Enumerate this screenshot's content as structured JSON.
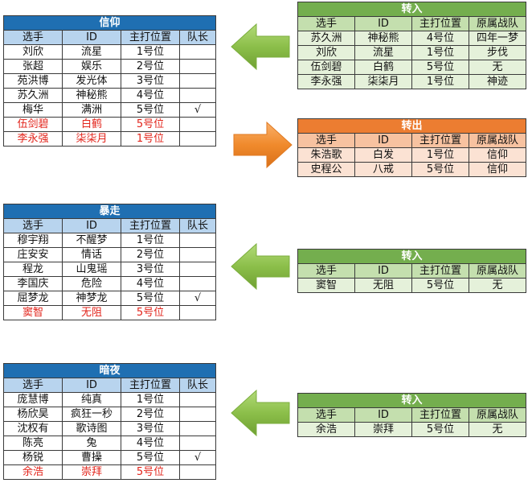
{
  "colors": {
    "team_title": "#1f6fb2",
    "team_header": "#b8d4ee",
    "transfer_in": "#74ae4e",
    "transfer_out": "#ec7d31",
    "new_member_text": "#e2231a",
    "arrow_green": "#8cbf4a",
    "arrow_orange": "#f08a2c"
  },
  "teams": [
    {
      "title": "信仰",
      "headers": [
        "选手",
        "ID",
        "主打位置",
        "队长"
      ],
      "rows": [
        {
          "name": "刘欣",
          "id": "流星",
          "pos": "1号位",
          "cap": "",
          "new": false
        },
        {
          "name": "张超",
          "id": "娱乐",
          "pos": "2号位",
          "cap": "",
          "new": false
        },
        {
          "name": "苑洪博",
          "id": "发光体",
          "pos": "3号位",
          "cap": "",
          "new": false
        },
        {
          "name": "苏久洲",
          "id": "神秘熊",
          "pos": "4号位",
          "cap": "",
          "new": false
        },
        {
          "name": "梅华",
          "id": "满洲",
          "pos": "5号位",
          "cap": "√",
          "new": false
        },
        {
          "name": "伍剑碧",
          "id": "白鹤",
          "pos": "5号位",
          "cap": "",
          "new": true
        },
        {
          "name": "李永强",
          "id": "柒柒月",
          "pos": "1号位",
          "cap": "",
          "new": true
        }
      ]
    },
    {
      "title": "暴走",
      "headers": [
        "选手",
        "ID",
        "主打位置",
        "队长"
      ],
      "rows": [
        {
          "name": "穆宇翔",
          "id": "不醒梦",
          "pos": "1号位",
          "cap": "",
          "new": false
        },
        {
          "name": "庄安安",
          "id": "情话",
          "pos": "2号位",
          "cap": "",
          "new": false
        },
        {
          "name": "程龙",
          "id": "山鬼瑶",
          "pos": "3号位",
          "cap": "",
          "new": false
        },
        {
          "name": "李国庆",
          "id": "危险",
          "pos": "4号位",
          "cap": "",
          "new": false
        },
        {
          "name": "屈梦龙",
          "id": "神梦龙",
          "pos": "5号位",
          "cap": "√",
          "new": false
        },
        {
          "name": "窦智",
          "id": "无阻",
          "pos": "5号位",
          "cap": "",
          "new": true
        }
      ]
    },
    {
      "title": "暗夜",
      "headers": [
        "选手",
        "ID",
        "主打位置",
        "队长"
      ],
      "rows": [
        {
          "name": "庞慧博",
          "id": "纯真",
          "pos": "1号位",
          "cap": "",
          "new": false
        },
        {
          "name": "杨欣昊",
          "id": "疯狂一秒",
          "pos": "2号位",
          "cap": "",
          "new": false
        },
        {
          "name": "沈权有",
          "id": "歌诗图",
          "pos": "3号位",
          "cap": "",
          "new": false
        },
        {
          "name": "陈亮",
          "id": "兔",
          "pos": "4号位",
          "cap": "",
          "new": false
        },
        {
          "name": "杨锐",
          "id": "曹操",
          "pos": "5号位",
          "cap": "√",
          "new": false
        },
        {
          "name": "余浩",
          "id": "崇拜",
          "pos": "5号位",
          "cap": "",
          "new": true
        }
      ]
    }
  ],
  "transfers": [
    {
      "title": "转入",
      "kind": "in",
      "headers": [
        "选手",
        "ID",
        "主打位置",
        "原属战队"
      ],
      "rows": [
        {
          "name": "苏久洲",
          "id": "神秘熊",
          "pos": "4号位",
          "from": "四年一梦"
        },
        {
          "name": "刘欣",
          "id": "流星",
          "pos": "1号位",
          "from": "步伐"
        },
        {
          "name": "伍剑碧",
          "id": "白鹤",
          "pos": "5号位",
          "from": "无"
        },
        {
          "name": "李永强",
          "id": "柒柒月",
          "pos": "1号位",
          "from": "神迹"
        }
      ]
    },
    {
      "title": "转出",
      "kind": "out",
      "headers": [
        "选手",
        "ID",
        "主打位置",
        "原属战队"
      ],
      "rows": [
        {
          "name": "朱浩歌",
          "id": "白发",
          "pos": "1号位",
          "from": "信仰"
        },
        {
          "name": "史程公",
          "id": "八戒",
          "pos": "5号位",
          "from": "信仰"
        }
      ]
    },
    {
      "title": "转入",
      "kind": "in",
      "headers": [
        "选手",
        "ID",
        "主打位置",
        "原属战队"
      ],
      "rows": [
        {
          "name": "窦智",
          "id": "无阻",
          "pos": "5号位",
          "from": "无"
        }
      ]
    },
    {
      "title": "转入",
      "kind": "in",
      "headers": [
        "选手",
        "ID",
        "主打位置",
        "原属战队"
      ],
      "rows": [
        {
          "name": "余浩",
          "id": "崇拜",
          "pos": "5号位",
          "from": "无"
        }
      ]
    }
  ]
}
